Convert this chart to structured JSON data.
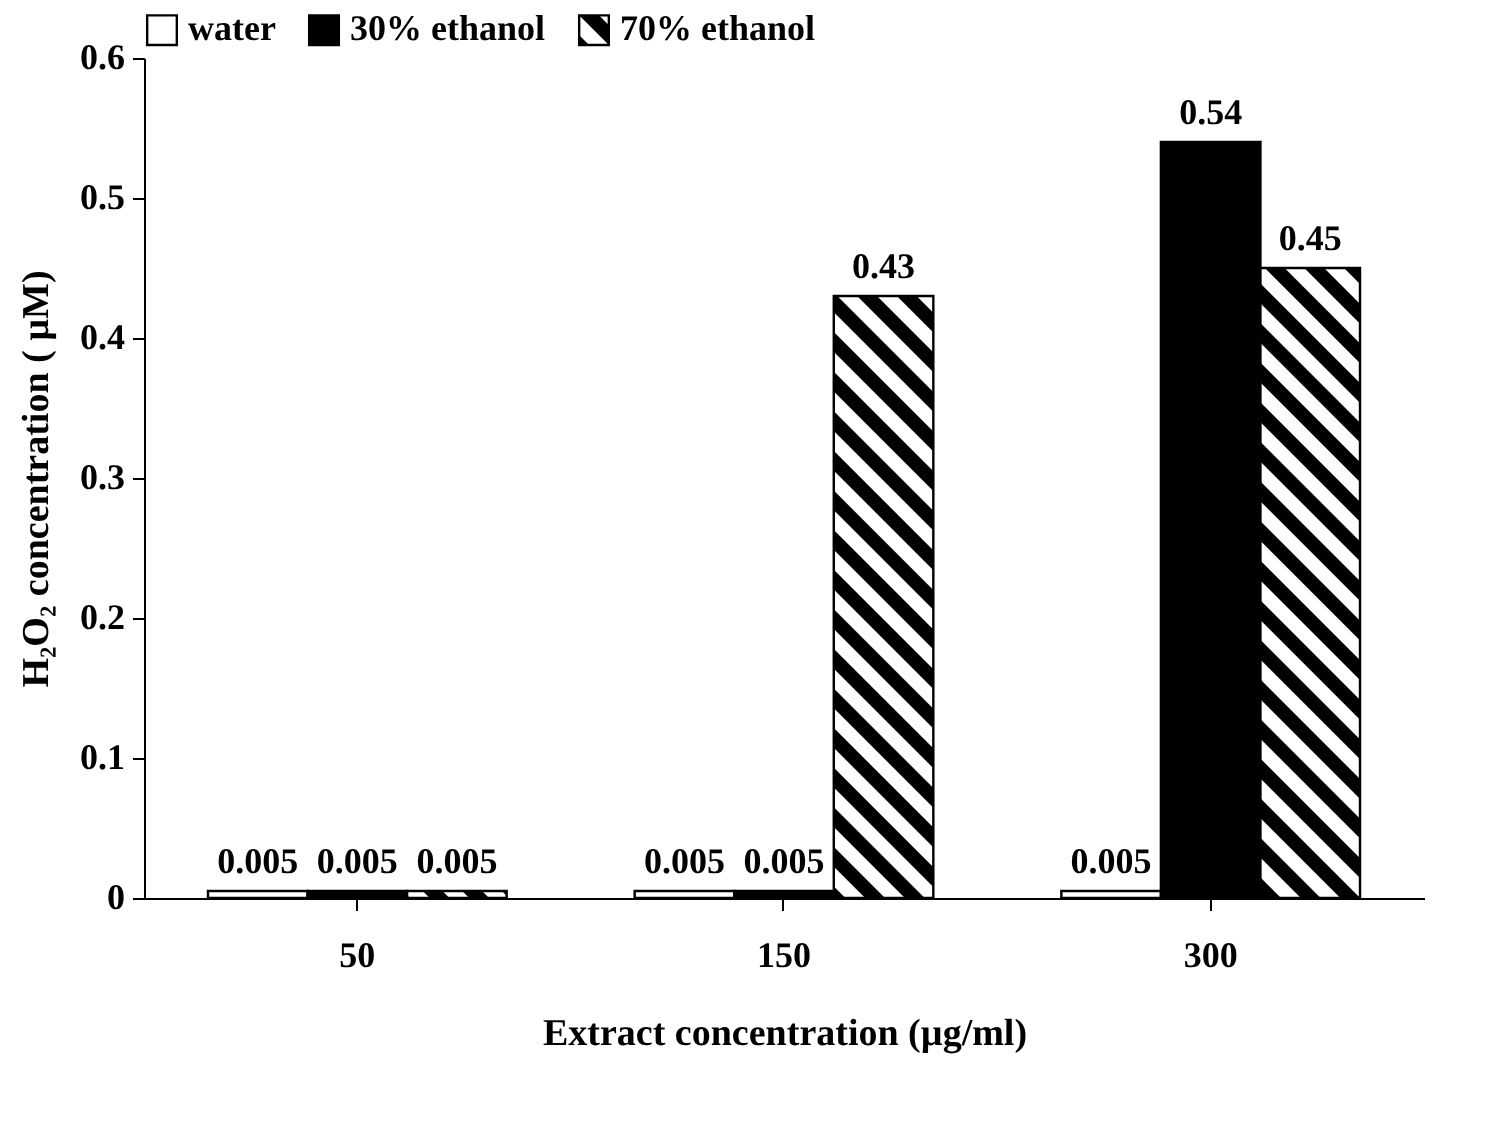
{
  "chart_data": {
    "type": "bar",
    "xlabel": "Extract concentration (µg/ml)",
    "ylabel": "H₂O₂ concentration ( µM)",
    "categories": [
      "50",
      "150",
      "300"
    ],
    "series": [
      {
        "name": "water",
        "color": "#ffffff",
        "values": [
          0.005,
          0.005,
          0.005
        ]
      },
      {
        "name": "30% ethanol",
        "color": "#000000",
        "values": [
          0.005,
          0.005,
          0.54
        ]
      },
      {
        "name": "70% ethanol",
        "color": "#000000",
        "values": [
          0.005,
          0.43,
          0.45
        ]
      }
    ],
    "ylim": [
      0,
      0.6
    ],
    "yticks": [
      0,
      0.1,
      0.2,
      0.3,
      0.4,
      0.5,
      0.6
    ],
    "grid": false,
    "legend": "top",
    "data_labels": true
  }
}
